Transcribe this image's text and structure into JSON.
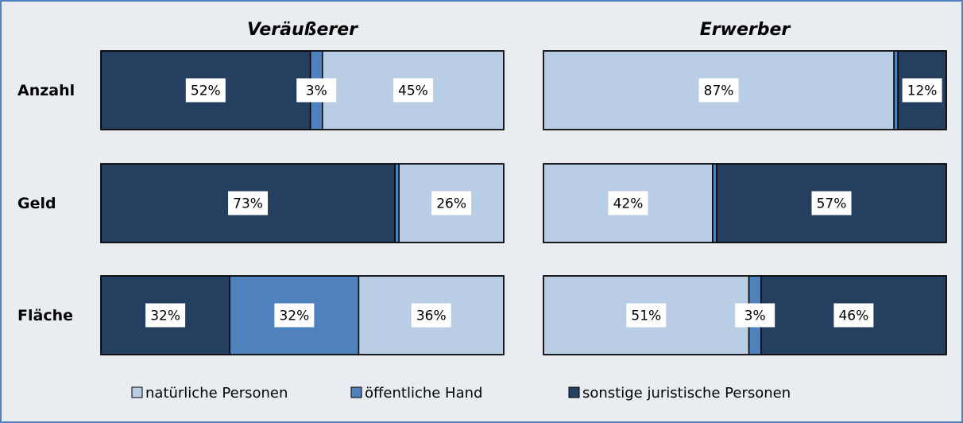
{
  "chart_data": {
    "type": "bar",
    "orientation": "horizontal",
    "stacked": true,
    "categories": [
      "Anzahl",
      "Geld",
      "Fläche"
    ],
    "xlim": [
      0,
      100
    ],
    "legend": "bottom",
    "panels": [
      {
        "title": "Veräußerer",
        "series": [
          {
            "name": "sonstige juristische Personen",
            "color": "#243f60",
            "values": [
              52,
              73,
              32
            ],
            "value_labels": [
              "52%",
              "73%",
              "32%"
            ]
          },
          {
            "name": "öffentliche Hand",
            "color": "#4f81bd",
            "values": [
              3,
              1,
              32
            ],
            "value_labels": [
              "3%",
              null,
              "32%"
            ]
          },
          {
            "name": "natürliche Personen",
            "color": "#b9cde5",
            "values": [
              45,
              26,
              36
            ],
            "value_labels": [
              "45%",
              "26%",
              "36%"
            ]
          }
        ]
      },
      {
        "title": "Erwerber",
        "series": [
          {
            "name": "natürliche Personen",
            "color": "#b9cde5",
            "values": [
              87,
              42,
              51
            ],
            "value_labels": [
              "87%",
              "42%",
              "51%"
            ]
          },
          {
            "name": "öffentliche Hand",
            "color": "#4f81bd",
            "values": [
              1,
              1,
              3
            ],
            "value_labels": [
              null,
              null,
              "3%"
            ]
          },
          {
            "name": "sonstige juristische Personen",
            "color": "#243f60",
            "values": [
              12,
              57,
              46
            ],
            "value_labels": [
              "12%",
              "57%",
              "46%"
            ]
          }
        ]
      }
    ]
  }
}
